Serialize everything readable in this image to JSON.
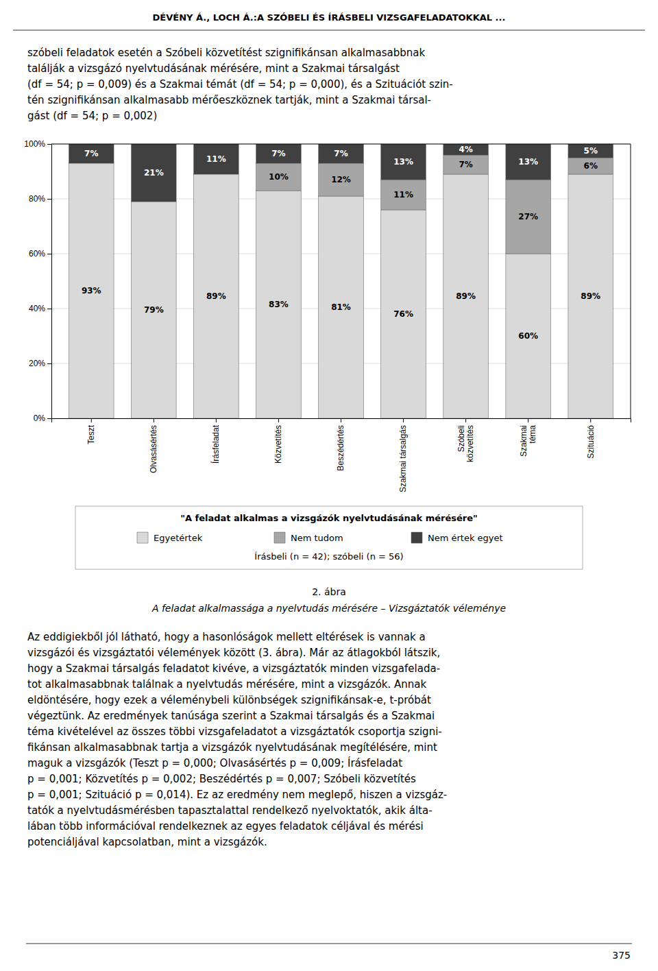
{
  "page": {
    "header": "DÉVÉNY Á., LOCH Á.:A SZÓBELI ÉS ÍRÁSBELI VIZSGAFELADATOKKAL ...",
    "intro": [
      "szóbeli feladatok esetén a Szóbeli közvetítést szignifikánsan alkalmasabbnak",
      "találják a vizsgázó nyelvtudásának mérésére, mint a Szakmai társalgást",
      "(df = 54; p = 0,009) és a Szakmai témát (df = 54; p = 0,000), és a Szituációt szin-",
      "tén szignifikánsan alkalmasabb mérőeszköznek tartják, mint a Szakmai társal-",
      "gást (df = 54; p = 0,002)"
    ],
    "body": [
      "Az eddigiekből jól látható, hogy a hasonlóságok mellett eltérések is vannak a",
      "vizsgázói és vizsgáztatói vélemények között (3. ábra). Már az átlagokból látszik,",
      "hogy a Szakmai társalgás feladatot kivéve, a vizsgáztatók minden vizsgafelada-",
      "tot alkalmasabbnak találnak a nyelvtudás mérésére, mint a vizsgázók. Annak",
      "eldöntésére, hogy ezek a véleménybeli különbségek szignifikánsak-e, t-próbát",
      "végeztünk. Az eredmények tanúsága szerint a Szakmai társalgás és a Szakmai",
      "téma kivételével az összes többi vizsgafeladatot a vizsgáztatók csoportja szigni-",
      "fikánsan alkalmasabbnak tartja a vizsgázók nyelvtudásának megítélésére, mint",
      "maguk a vizsgázók (Teszt p = 0,000; Olvasásértés p = 0,009; Írásfeladat",
      "p = 0,001; Közvetítés p = 0,002; Beszédértés p = 0,007; Szóbeli közvetítés",
      "p = 0,001; Szituáció p = 0,014). Ez az eredmény nem meglepő, hiszen a vizsgáz-",
      "tatók a nyelvtudásmérésben tapasztalattal rendelkező nyelvoktatók, akik álta-",
      "lában több információval rendelkeznek az egyes feladatok céljával és mérési",
      "potenciáljával kapcsolatban, mint a vizsgázók."
    ],
    "page_number": "375"
  },
  "chart_data": {
    "type": "bar",
    "stacked": true,
    "title": "2. ábra",
    "subtitle": "A feladat alkalmassága a nyelvtudás mérésére – Vizsgáztatók véleménye",
    "categories": [
      "Teszt",
      "Olvasásértés",
      "Írásfeladat",
      "Közvetítés",
      "Beszédértés",
      "Szakmai társalgás",
      "Szóbeli\nközvetítés",
      "Szakmai\ntéma",
      "Szituáció"
    ],
    "series": [
      {
        "name": "Egyetértek",
        "color": "#d9d9d9",
        "values": [
          93,
          79,
          89,
          83,
          81,
          76,
          89,
          60,
          89
        ],
        "value_labels": [
          "93%",
          "79%",
          "89%",
          "83%",
          "81%",
          "76%",
          "89%",
          "60%",
          "89%"
        ]
      },
      {
        "name": "Nem tudom",
        "color": "#a6a6a6",
        "values": [
          0,
          0,
          0,
          10,
          12,
          11,
          7,
          27,
          6
        ],
        "value_labels": [
          null,
          null,
          null,
          "10%",
          "12%",
          "11%",
          "7%",
          "27%",
          "6%"
        ]
      },
      {
        "name": "Nem értek egyet",
        "color": "#404040",
        "values": [
          7,
          21,
          11,
          7,
          7,
          13,
          4,
          13,
          5
        ],
        "value_labels": [
          "7%",
          "21%",
          "11%",
          "7%",
          "7%",
          "13%",
          "4%",
          "13%",
          "5%"
        ]
      }
    ],
    "ylim": [
      0,
      100
    ],
    "yticks": [
      {
        "value": 0,
        "label": "0%"
      },
      {
        "value": 20,
        "label": "20%"
      },
      {
        "value": 40,
        "label": "40%"
      },
      {
        "value": 60,
        "label": "60%"
      },
      {
        "value": 80,
        "label": "80%"
      },
      {
        "value": 100,
        "label": "100%"
      }
    ],
    "grid": true,
    "data_labels": true,
    "legend": "bottom",
    "annotations": [
      "\"A feladat alkalmas a vizsgázók nyelvtudásának mérésére\"",
      "Írásbeli (n = 42); szóbeli (n = 56)"
    ]
  }
}
